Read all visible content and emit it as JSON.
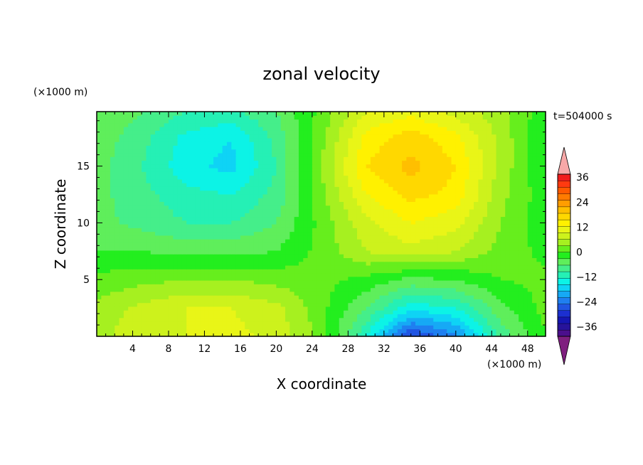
{
  "chart_data": {
    "type": "heatmap",
    "title": "zonal velocity",
    "xlabel": "X coordinate",
    "ylabel": "Z coordinate",
    "x_unit": "(×1000 m)",
    "y_unit": "(×1000 m)",
    "time_label": "t=504000 s",
    "xlim": [
      0,
      50
    ],
    "ylim": [
      0,
      19.8
    ],
    "x_ticks": [
      4,
      8,
      12,
      16,
      20,
      24,
      28,
      32,
      36,
      40,
      44,
      48
    ],
    "y_ticks": [
      5,
      10,
      15
    ],
    "colorbar": {
      "levels": [
        -42,
        -39,
        -36,
        -33,
        -30,
        -27,
        -24,
        -21,
        -18,
        -15,
        -12,
        -9,
        -6,
        -3,
        0,
        3,
        6,
        9,
        12,
        15,
        18,
        21,
        24,
        27,
        30,
        33,
        36,
        39,
        42
      ],
      "tick_labels": [
        "36",
        "24",
        "12",
        "0",
        "−12",
        "−24",
        "−36"
      ],
      "tick_values": [
        36,
        24,
        12,
        0,
        -12,
        -24,
        -36
      ],
      "extend": "both",
      "colors": [
        "#7f1f7f",
        "#4b0f8c",
        "#27139b",
        "#1616b2",
        "#1c2fd0",
        "#2055e2",
        "#1f7ff0",
        "#16a9f5",
        "#0fd3f5",
        "#0cf3e6",
        "#25f0b5",
        "#45ee8a",
        "#5fee5b",
        "#23ee1e",
        "#66ee1d",
        "#a6f020",
        "#cdf21c",
        "#e9f517",
        "#fff100",
        "#ffd800",
        "#ffbf00",
        "#ff9d00",
        "#ff7b00",
        "#ff5a00",
        "#ff3a10",
        "#f01c1c",
        "#f7a8a8"
      ]
    },
    "field": {
      "x_nodes": [
        0,
        5,
        10,
        15,
        20,
        25,
        30,
        35,
        40,
        45,
        50
      ],
      "z_nodes": [
        0,
        2.5,
        5,
        7.5,
        10,
        12.5,
        15,
        17.5,
        19.8
      ],
      "values": [
        [
          5,
          8,
          9,
          10,
          8,
          2,
          -12,
          -28,
          -22,
          -8,
          0
        ],
        [
          4,
          7,
          9,
          9,
          7,
          1,
          -6,
          -14,
          -12,
          -4,
          1
        ],
        [
          1,
          2,
          3,
          3,
          2,
          1,
          -1,
          -4,
          -3,
          0,
          1
        ],
        [
          -3,
          -3,
          -4,
          -4,
          -3,
          1,
          6,
          8,
          6,
          2,
          -1
        ],
        [
          -5,
          -7,
          -9,
          -9,
          -6,
          1,
          8,
          12,
          10,
          3,
          -2
        ],
        [
          -5,
          -8,
          -11,
          -12,
          -8,
          2,
          12,
          16,
          14,
          4,
          -2
        ],
        [
          -5,
          -9,
          -14,
          -16,
          -9,
          3,
          15,
          19,
          15,
          5,
          -3
        ],
        [
          -4,
          -8,
          -13,
          -15,
          -8,
          2,
          13,
          17,
          13,
          5,
          -3
        ],
        [
          -3,
          -6,
          -9,
          -10,
          -6,
          1,
          9,
          11,
          8,
          4,
          -2
        ]
      ]
    }
  }
}
